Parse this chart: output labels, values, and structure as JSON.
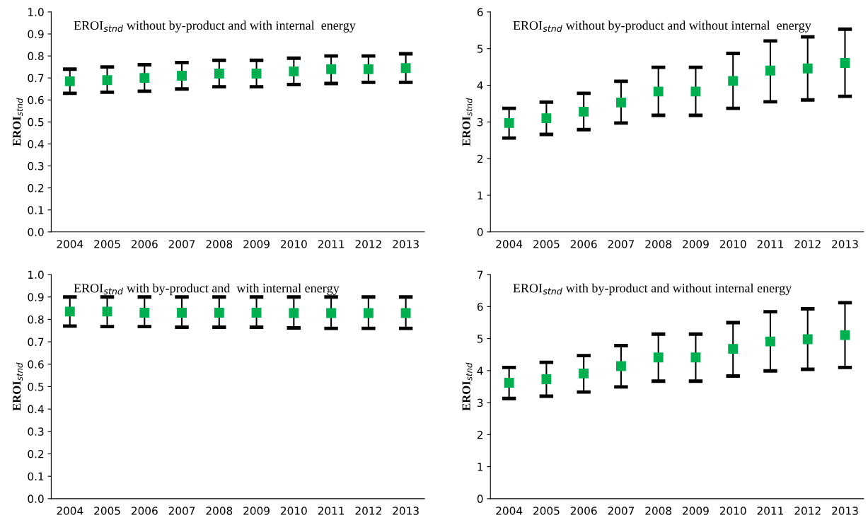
{
  "chart_data": [
    {
      "type": "scatter",
      "title": "EROI$_{stnd}$ without by-product and with internal  energy",
      "ylabel": "EROI$_{stnd}$",
      "categories": [
        "2004",
        "2005",
        "2006",
        "2007",
        "2008",
        "2009",
        "2010",
        "2011",
        "2012",
        "2013"
      ],
      "marker": "square",
      "grid": false,
      "legend": false,
      "series": [
        {
          "color": "#00b050",
          "values": [
            0.685,
            0.69,
            0.7,
            0.71,
            0.72,
            0.72,
            0.73,
            0.74,
            0.74,
            0.745
          ],
          "errors": [
            [
              0.63,
              0.74
            ],
            [
              0.635,
              0.75
            ],
            [
              0.64,
              0.76
            ],
            [
              0.65,
              0.77
            ],
            [
              0.66,
              0.78
            ],
            [
              0.66,
              0.78
            ],
            [
              0.67,
              0.79
            ],
            [
              0.675,
              0.8
            ],
            [
              0.68,
              0.8
            ],
            [
              0.68,
              0.81
            ]
          ]
        }
      ],
      "ylim": [
        0,
        1
      ],
      "yticks": [
        {
          "value": 0,
          "label": "0.0"
        },
        {
          "value": 0.1,
          "label": "0.1"
        },
        {
          "value": 0.2,
          "label": "0.2"
        },
        {
          "value": 0.3,
          "label": "0.3"
        },
        {
          "value": 0.4,
          "label": "0.4"
        },
        {
          "value": 0.5,
          "label": "0.5"
        },
        {
          "value": 0.6,
          "label": "0.6"
        },
        {
          "value": 0.7,
          "label": "0.7"
        },
        {
          "value": 0.8,
          "label": "0.8"
        },
        {
          "value": 0.9,
          "label": "0.9"
        },
        {
          "value": 1,
          "label": "1.0"
        }
      ]
    },
    {
      "type": "scatter",
      "title": "EROI$_{stnd}$ without by-product and without internal  energy",
      "ylabel": "EROI$_{stnd}$",
      "categories": [
        "2004",
        "2005",
        "2006",
        "2007",
        "2008",
        "2009",
        "2010",
        "2011",
        "2012",
        "2013"
      ],
      "marker": "square",
      "grid": false,
      "legend": false,
      "series": [
        {
          "color": "#00b050",
          "values": [
            2.97,
            3.1,
            3.28,
            3.53,
            3.83,
            3.83,
            4.12,
            4.4,
            4.46,
            4.61
          ],
          "errors": [
            [
              2.56,
              3.37
            ],
            [
              2.66,
              3.54
            ],
            [
              2.79,
              3.78
            ],
            [
              2.97,
              4.11
            ],
            [
              3.18,
              4.49
            ],
            [
              3.18,
              4.49
            ],
            [
              3.37,
              4.87
            ],
            [
              3.55,
              5.21
            ],
            [
              3.6,
              5.32
            ],
            [
              3.7,
              5.53
            ]
          ]
        }
      ],
      "ylim": [
        0,
        6
      ],
      "yticks": [
        0,
        1,
        2,
        3,
        4,
        5,
        6
      ]
    },
    {
      "type": "scatter",
      "title": "EROI$_{stnd}$ with by-product and  with internal energy",
      "ylabel": "EROI$_{stnd}$",
      "categories": [
        "2004",
        "2005",
        "2006",
        "2007",
        "2008",
        "2009",
        "2010",
        "2011",
        "2012",
        "2013"
      ],
      "marker": "square",
      "grid": false,
      "legend": false,
      "series": [
        {
          "color": "#00b050",
          "values": [
            0.835,
            0.835,
            0.83,
            0.83,
            0.83,
            0.83,
            0.828,
            0.828,
            0.828,
            0.828
          ],
          "errors": [
            [
              0.77,
              0.9
            ],
            [
              0.768,
              0.9
            ],
            [
              0.768,
              0.9
            ],
            [
              0.765,
              0.9
            ],
            [
              0.765,
              0.9
            ],
            [
              0.765,
              0.9
            ],
            [
              0.762,
              0.9
            ],
            [
              0.76,
              0.9
            ],
            [
              0.76,
              0.9
            ],
            [
              0.76,
              0.9
            ]
          ]
        }
      ],
      "ylim": [
        0,
        1
      ],
      "yticks": [
        {
          "value": 0,
          "label": "0.0"
        },
        {
          "value": 0.1,
          "label": "0.1"
        },
        {
          "value": 0.2,
          "label": "0.2"
        },
        {
          "value": 0.3,
          "label": "0.3"
        },
        {
          "value": 0.4,
          "label": "0.4"
        },
        {
          "value": 0.5,
          "label": "0.5"
        },
        {
          "value": 0.6,
          "label": "0.6"
        },
        {
          "value": 0.7,
          "label": "0.7"
        },
        {
          "value": 0.8,
          "label": "0.8"
        },
        {
          "value": 0.9,
          "label": "0.9"
        },
        {
          "value": 1,
          "label": "1.0"
        }
      ]
    },
    {
      "type": "scatter",
      "title": "EROI$_{stnd}$ with by-product and without internal energy",
      "ylabel": "EROI$_{stnd}$",
      "categories": [
        "2004",
        "2005",
        "2006",
        "2007",
        "2008",
        "2009",
        "2010",
        "2011",
        "2012",
        "2013"
      ],
      "marker": "square",
      "grid": false,
      "legend": false,
      "series": [
        {
          "color": "#00b050",
          "values": [
            3.62,
            3.73,
            3.91,
            4.14,
            4.41,
            4.41,
            4.68,
            4.91,
            4.98,
            5.11
          ],
          "errors": [
            [
              3.13,
              4.1
            ],
            [
              3.2,
              4.26
            ],
            [
              3.33,
              4.47
            ],
            [
              3.49,
              4.78
            ],
            [
              3.67,
              5.14
            ],
            [
              3.67,
              5.14
            ],
            [
              3.83,
              5.5
            ],
            [
              3.99,
              5.84
            ],
            [
              4.04,
              5.93
            ],
            [
              4.1,
              6.12
            ]
          ]
        }
      ],
      "ylim": [
        0,
        7
      ],
      "yticks": [
        0,
        1,
        2,
        3,
        4,
        5,
        6,
        7
      ]
    }
  ]
}
